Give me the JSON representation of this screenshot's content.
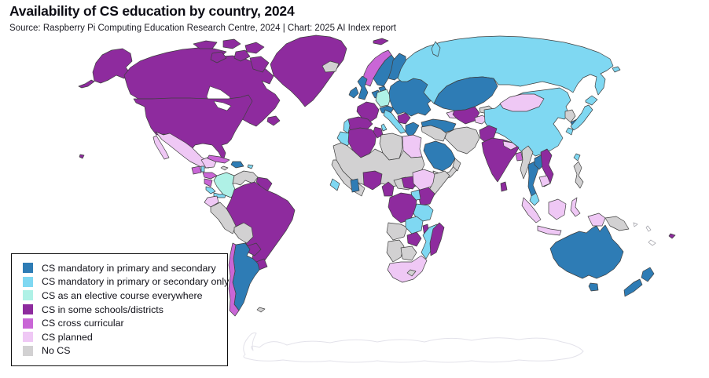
{
  "header": {
    "title": "Availability of CS education by country, 2024",
    "source": "Source: Raspberry Pi Computing Education Research Centre, 2024 | Chart: 2025 AI Index report"
  },
  "legend": {
    "items": [
      {
        "key": "both",
        "label": "CS mandatory in primary and secondary",
        "color": "#2E7CB5"
      },
      {
        "key": "one",
        "label": "CS mandatory in primary or secondary only",
        "color": "#7FD8F2"
      },
      {
        "key": "elective",
        "label": "CS as an elective course everywhere",
        "color": "#AFF1E6"
      },
      {
        "key": "some",
        "label": "CS in some schools/districts",
        "color": "#8E2B9E"
      },
      {
        "key": "cross",
        "label": "CS cross curricular",
        "color": "#C966D6"
      },
      {
        "key": "planned",
        "label": "CS planned",
        "color": "#EFC8F5"
      },
      {
        "key": "none",
        "label": "No CS",
        "color": "#D2D1D2"
      }
    ]
  },
  "map": {
    "border_color": "#3f3f3f",
    "ocean_color": "#ffffff",
    "regions": {
      "chukotka_west": "one",
      "alaska": "some",
      "aleutians": "some",
      "hawaii": "some",
      "canada": "some",
      "newfoundland": "some",
      "arctic1": "some",
      "arctic2": "some",
      "arctic3": "some",
      "arctic4": "some",
      "arctic5": "some",
      "arctic6": "some",
      "greenland": "some",
      "iceland": "none",
      "svalbard": "some",
      "usa": "some",
      "mexico": "planned",
      "baja": "planned",
      "yucatan": "planned",
      "guatemala": "cross",
      "belize": "one",
      "honduras": "cross",
      "nicaragua": "cross",
      "costa_rica": "one",
      "panama": "one",
      "cuba": "cross",
      "jamaica": "none",
      "hispaniola": "both",
      "puerto_rico": "one",
      "colombia": "elective",
      "venezuela": "none",
      "guyanas": "some",
      "ecuador": "planned",
      "peru": "none",
      "bolivia": "none",
      "brazil": "some",
      "paraguay": "some",
      "uruguay": "some",
      "argentina": "both",
      "chile": "cross",
      "falklands": "none",
      "norway": "cross",
      "sweden": "both",
      "finland": "both",
      "denmark": "both",
      "uk": "both",
      "ireland": "both",
      "benelux": "both",
      "germany": "elective",
      "france": "some",
      "spain": "some",
      "portugal": "one",
      "italy": "one",
      "sicily": "one",
      "sardinia": "one",
      "alpine": "both",
      "east_europe": "both",
      "balkans": "some",
      "greece": "both",
      "turkey": "both",
      "caucasus": "planned",
      "russia": "one",
      "novaya_zemlya": "one",
      "wrangel": "one",
      "kazakhstan": "both",
      "central_asia": "some",
      "tajikistan": "planned",
      "kyrgyzstan": "none",
      "mongolia": "planned",
      "china": "one",
      "taiwan": "one",
      "north_korea": "none",
      "south_korea": "both",
      "japan_hokkaido": "one",
      "japan_honshu": "one",
      "japan_kyushu": "one",
      "syria_iraq": "none",
      "iran": "none",
      "afghanistan": "some",
      "pakistan": "some",
      "saudi": "both",
      "yemen": "none",
      "oman": "none",
      "morocco": "one",
      "algeria": "some",
      "tunisia": "some",
      "libya": "none",
      "egypt": "planned",
      "sahara": "none",
      "west_africa": "none",
      "guinea_sl": "one",
      "ghana": "both",
      "nigeria": "some",
      "cameroon": "some",
      "car": "none",
      "south_sudan": "some",
      "ethiopia": "planned",
      "somalia": "none",
      "kenya": "some",
      "uganda": "one",
      "drc": "some",
      "tanzania": "one",
      "angola": "none",
      "zambia": "one",
      "malawi": "some",
      "mozambique": "one",
      "zimbabwe": "some",
      "namibia": "none",
      "botswana": "none",
      "south_africa": "planned",
      "lesotho": "none",
      "madagascar": "some",
      "india": "some",
      "nepal": "planned",
      "bangladesh": "cross",
      "sri_lanka": "some",
      "myanmar": "none",
      "thailand": "both",
      "laos": "both",
      "vietnam": "some",
      "cambodia": "planned",
      "malaysia_peninsula": "one",
      "sumatra": "planned",
      "java": "planned",
      "borneo": "planned",
      "sulawesi": "planned",
      "philippines": "none",
      "west_papua": "planned",
      "png": "none",
      "australia": "both",
      "tasmania": "both",
      "nz_north": "both",
      "nz_south": "both",
      "fiji": "some"
    }
  }
}
